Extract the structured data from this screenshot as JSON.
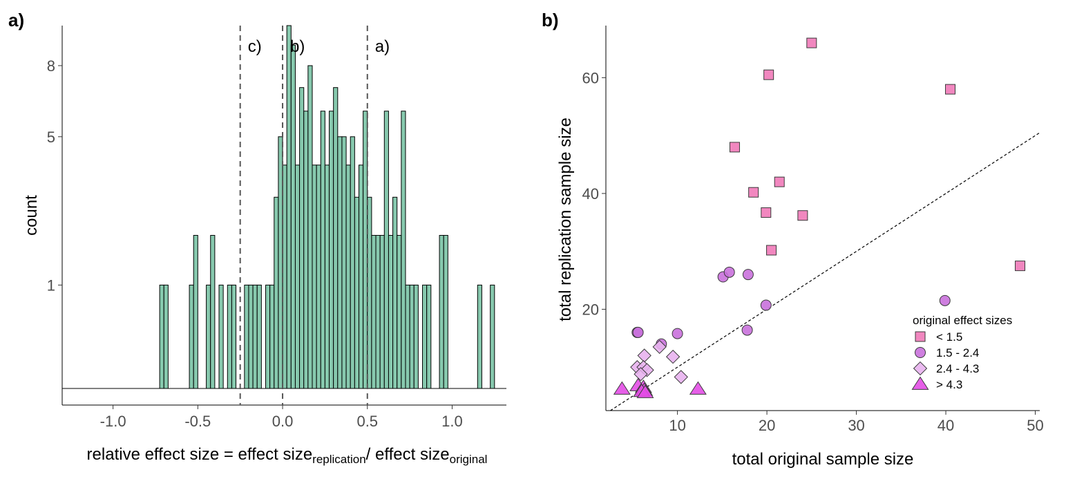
{
  "panels": {
    "a_label": "a)",
    "b_label": "b)"
  },
  "chart_data": [
    {
      "type": "bar",
      "panel": "a)",
      "xlabel": {
        "prefix": "relative effect size = effect size",
        "sub1": "replication",
        "mid": "/ effect size",
        "sub2": "original"
      },
      "ylabel": "count",
      "xlim": [
        -1.3,
        1.32
      ],
      "yscale": "sqrt",
      "ylim": [
        0,
        10
      ],
      "baseline_count": 0,
      "xticks": [
        -1.0,
        -0.5,
        0.0,
        0.5,
        1.0
      ],
      "xtick_labels": [
        "-1.0",
        "-0.5",
        "0.0",
        "0.5",
        "1.0"
      ],
      "yticks": [
        1,
        5,
        8
      ],
      "ytick_labels": [
        "1",
        "5",
        "8"
      ],
      "bin_width": 0.025,
      "bins": [
        {
          "x": -0.725,
          "count": 1
        },
        {
          "x": -0.7,
          "count": 1
        },
        {
          "x": -0.55,
          "count": 1
        },
        {
          "x": -0.525,
          "count": 2
        },
        {
          "x": -0.45,
          "count": 1
        },
        {
          "x": -0.425,
          "count": 2
        },
        {
          "x": -0.375,
          "count": 1
        },
        {
          "x": -0.325,
          "count": 1
        },
        {
          "x": -0.3,
          "count": 1
        },
        {
          "x": -0.225,
          "count": 1
        },
        {
          "x": -0.2,
          "count": 1
        },
        {
          "x": -0.175,
          "count": 1
        },
        {
          "x": -0.15,
          "count": 1
        },
        {
          "x": -0.1,
          "count": 1
        },
        {
          "x": -0.075,
          "count": 1
        },
        {
          "x": -0.05,
          "count": 3
        },
        {
          "x": -0.025,
          "count": 5
        },
        {
          "x": 0.0,
          "count": 4
        },
        {
          "x": 0.025,
          "count": 10
        },
        {
          "x": 0.05,
          "count": 9
        },
        {
          "x": 0.075,
          "count": 4
        },
        {
          "x": 0.1,
          "count": 7
        },
        {
          "x": 0.125,
          "count": 6
        },
        {
          "x": 0.15,
          "count": 8
        },
        {
          "x": 0.175,
          "count": 4
        },
        {
          "x": 0.2,
          "count": 4
        },
        {
          "x": 0.225,
          "count": 6
        },
        {
          "x": 0.25,
          "count": 4
        },
        {
          "x": 0.275,
          "count": 6
        },
        {
          "x": 0.3,
          "count": 7
        },
        {
          "x": 0.325,
          "count": 5
        },
        {
          "x": 0.35,
          "count": 5
        },
        {
          "x": 0.375,
          "count": 4
        },
        {
          "x": 0.4,
          "count": 5
        },
        {
          "x": 0.425,
          "count": 3
        },
        {
          "x": 0.45,
          "count": 4
        },
        {
          "x": 0.475,
          "count": 6
        },
        {
          "x": 0.5,
          "count": 3
        },
        {
          "x": 0.525,
          "count": 2
        },
        {
          "x": 0.55,
          "count": 2
        },
        {
          "x": 0.575,
          "count": 2
        },
        {
          "x": 0.6,
          "count": 6
        },
        {
          "x": 0.625,
          "count": 2
        },
        {
          "x": 0.65,
          "count": 3
        },
        {
          "x": 0.675,
          "count": 2
        },
        {
          "x": 0.7,
          "count": 6
        },
        {
          "x": 0.725,
          "count": 1
        },
        {
          "x": 0.75,
          "count": 1
        },
        {
          "x": 0.775,
          "count": 1
        },
        {
          "x": 0.825,
          "count": 1
        },
        {
          "x": 0.85,
          "count": 1
        },
        {
          "x": 0.925,
          "count": 2
        },
        {
          "x": 0.95,
          "count": 2
        },
        {
          "x": 1.15,
          "count": 1
        },
        {
          "x": 1.225,
          "count": 1
        }
      ],
      "vlines": [
        {
          "x": -0.25,
          "label": "c)"
        },
        {
          "x": 0.0,
          "label": "b)"
        },
        {
          "x": 0.5,
          "label": "a)"
        }
      ]
    },
    {
      "type": "scatter",
      "panel": "b)",
      "xlabel": "total original sample size",
      "ylabel": "total replication sample size",
      "xlim": [
        2,
        50.5
      ],
      "ylim": [
        2.5,
        69
      ],
      "xticks": [
        10,
        20,
        30,
        40,
        50
      ],
      "xtick_labels": [
        "10",
        "20",
        "30",
        "40",
        "50"
      ],
      "yticks": [
        20,
        40,
        60
      ],
      "ytick_labels": [
        "20",
        "40",
        "60"
      ],
      "reference_line": "y = x",
      "legend": {
        "title": "original effect sizes",
        "position": "bottom-right"
      },
      "series": [
        {
          "name": "< 1.5",
          "marker": "square",
          "color": "#f07ab8",
          "points": [
            [
              25,
              66
            ],
            [
              20.2,
              60.5
            ],
            [
              40.5,
              58
            ],
            [
              16.4,
              48
            ],
            [
              21.4,
              42
            ],
            [
              18.5,
              40.2
            ],
            [
              19.9,
              36.7
            ],
            [
              24,
              36.2
            ],
            [
              20.5,
              30.2
            ],
            [
              48.3,
              27.5
            ]
          ]
        },
        {
          "name": "1.5 - 2.4",
          "marker": "circle",
          "color": "#c971dc",
          "points": [
            [
              15.1,
              25.6
            ],
            [
              15.8,
              26.4
            ],
            [
              17.9,
              26
            ],
            [
              19.9,
              20.7
            ],
            [
              39.9,
              21.5
            ],
            [
              17.8,
              16.4
            ],
            [
              5.5,
              16
            ],
            [
              5.6,
              16
            ],
            [
              10,
              15.8
            ],
            [
              8.2,
              14
            ]
          ]
        },
        {
          "name": "2.4 - 4.3",
          "marker": "diamond",
          "color": "#e8b2ee",
          "points": [
            [
              8,
              13.5
            ],
            [
              6.3,
              12
            ],
            [
              9.5,
              11.8
            ],
            [
              5.5,
              10
            ],
            [
              6.2,
              10
            ],
            [
              6.6,
              9.5
            ],
            [
              5.9,
              8.8
            ],
            [
              10.4,
              8.3
            ]
          ]
        },
        {
          "name": "> 4.3",
          "marker": "triangle",
          "color": "#e34ee5",
          "points": [
            [
              3.8,
              6.2
            ],
            [
              5.6,
              6.8
            ],
            [
              6.2,
              6.5
            ],
            [
              6.3,
              6
            ],
            [
              12.3,
              6.2
            ],
            [
              6,
              5.8
            ],
            [
              6.4,
              5.6
            ]
          ]
        }
      ]
    }
  ]
}
